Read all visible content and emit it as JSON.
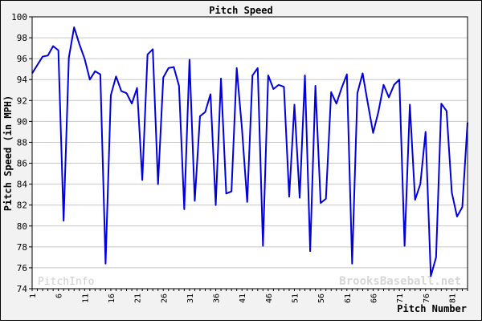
{
  "chart_data": {
    "type": "line",
    "title": "Pitch Speed",
    "xlabel": "Pitch Number",
    "ylabel": "Pitch Speed (in MPH)",
    "ylim": [
      74,
      100
    ],
    "xlim": [
      1,
      84
    ],
    "grid": true,
    "legend": "none",
    "y_ticks": [
      "74",
      "76",
      "78",
      "80",
      "82",
      "84",
      "86",
      "88",
      "90",
      "92",
      "94",
      "96",
      "98",
      "100"
    ],
    "x_ticks": [
      "1",
      "6",
      "11",
      "16",
      "21",
      "26",
      "31",
      "36",
      "41",
      "46",
      "51",
      "56",
      "61",
      "66",
      "71",
      "76",
      "81"
    ],
    "series": [
      {
        "values": [
          94.6,
          95.4,
          96.2,
          96.3,
          97.2,
          96.8,
          80.5,
          96.1,
          99.0,
          97.4,
          96.0,
          94.0,
          94.8,
          94.5,
          76.4,
          92.5,
          94.3,
          92.9,
          92.7,
          91.7,
          93.2,
          84.4,
          96.4,
          96.9,
          84.0,
          94.2,
          95.1,
          95.2,
          93.4,
          81.6,
          95.9,
          82.4,
          90.5,
          90.9,
          92.6,
          82.0,
          94.1,
          83.1,
          83.3,
          95.1,
          89.3,
          82.3,
          94.4,
          95.1,
          78.1,
          94.4,
          93.1,
          93.5,
          93.3,
          82.8,
          91.6,
          82.7,
          94.4,
          77.6,
          93.4,
          82.2,
          82.6,
          92.8,
          91.7,
          93.2,
          94.5,
          76.4,
          92.7,
          94.6,
          91.7,
          88.9,
          90.9,
          93.5,
          92.3,
          93.5,
          94.0,
          78.1,
          91.6,
          82.5,
          84.0,
          89.0,
          75.2,
          77.0,
          91.7,
          91.0,
          83.2,
          80.9,
          81.8,
          89.9
        ]
      }
    ]
  },
  "watermarks": {
    "left": "PitchInfo",
    "right": "BrooksBaseball.net"
  },
  "colors": {
    "line": "#0000dd",
    "grid": "#c8c8c8",
    "plot_bg": "#ffffff",
    "frame_bg": "#f2f2f2"
  }
}
